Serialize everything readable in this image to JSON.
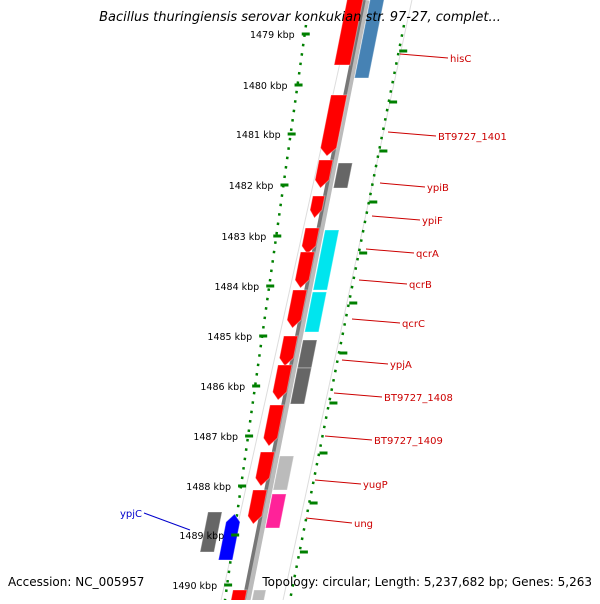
{
  "title": "Bacillus thuringiensis serovar konkukian str. 97-27, complet...",
  "accession": "Accession: NC_005957",
  "topology": "Topology: circular; Length: 5,237,682 bp; Genes: 5,263",
  "ticks": [
    {
      "label": "1479 kbp"
    },
    {
      "label": "1480 kbp"
    },
    {
      "label": "1481 kbp"
    },
    {
      "label": "1482 kbp"
    },
    {
      "label": "1483 kbp"
    },
    {
      "label": "1484 kbp"
    },
    {
      "label": "1485 kbp"
    },
    {
      "label": "1486 kbp"
    },
    {
      "label": "1487 kbp"
    },
    {
      "label": "1488 kbp"
    },
    {
      "label": "1489 kbp"
    },
    {
      "label": "1490 kbp"
    }
  ],
  "genes": [
    {
      "name": "hisC",
      "color": "#cc0000"
    },
    {
      "name": "BT9727_1401",
      "color": "#cc0000"
    },
    {
      "name": "ypiB",
      "color": "#cc0000"
    },
    {
      "name": "ypiF",
      "color": "#cc0000"
    },
    {
      "name": "qcrA",
      "color": "#cc0000"
    },
    {
      "name": "qcrB",
      "color": "#cc0000"
    },
    {
      "name": "qcrC",
      "color": "#cc0000"
    },
    {
      "name": "ypjA",
      "color": "#cc0000"
    },
    {
      "name": "BT9727_1408",
      "color": "#cc0000"
    },
    {
      "name": "BT9727_1409",
      "color": "#cc0000"
    },
    {
      "name": "yugP",
      "color": "#cc0000"
    },
    {
      "name": "ung",
      "color": "#cc0000"
    },
    {
      "name": "ypjC",
      "color": "#0000cc"
    }
  ],
  "feature_colors": {
    "forward": "#ff0000",
    "reverse": "#0000ff",
    "other": "#666666",
    "light_other": "#bbbbbb",
    "cyan": "#00e5ee",
    "magenta": "#ff2299",
    "steel": "#4682b4",
    "tick": "#008000"
  }
}
